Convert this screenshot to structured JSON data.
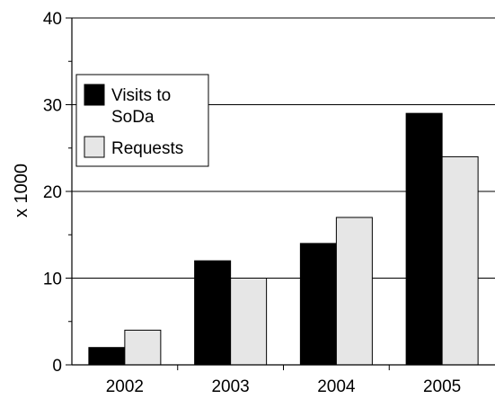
{
  "chart_data": {
    "type": "bar",
    "categories": [
      "2002",
      "2003",
      "2004",
      "2005"
    ],
    "series": [
      {
        "name": "Visits to SoDa",
        "values": [
          2,
          12,
          14,
          29
        ],
        "color": "#000000"
      },
      {
        "name": "Requests",
        "values": [
          4,
          10,
          17,
          24
        ],
        "color": "#e6e6e6"
      }
    ],
    "legend_lines": [
      [
        "Visits to",
        "SoDa"
      ],
      [
        "Requests"
      ]
    ],
    "ylabel": "x 1000",
    "ylim": [
      0,
      40
    ],
    "yticks": [
      "0",
      "10",
      "20",
      "30",
      "40"
    ],
    "grid": "horizontal",
    "legend_position": "left"
  }
}
